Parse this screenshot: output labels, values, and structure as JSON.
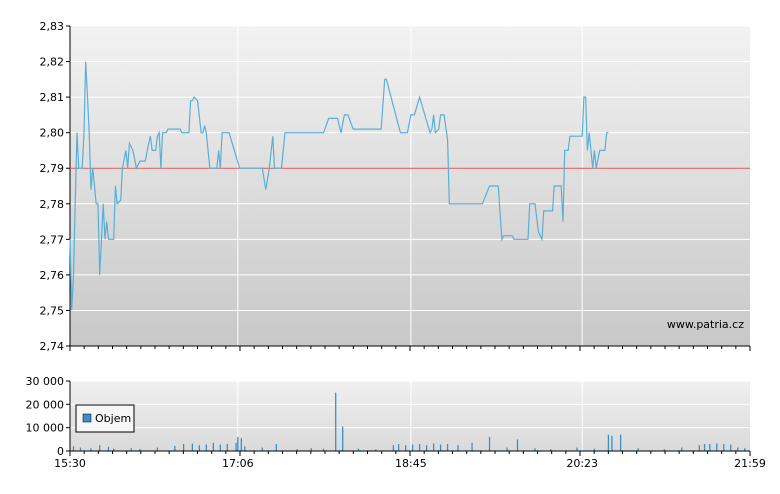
{
  "chart_data": [
    {
      "type": "line",
      "title": "",
      "xlabel": "",
      "ylabel": "",
      "ylim": [
        2.74,
        2.83
      ],
      "y_ticks": [
        "2,74",
        "2,75",
        "2,76",
        "2,77",
        "2,78",
        "2,79",
        "2,80",
        "2,81",
        "2,82",
        "2,83"
      ],
      "x_ticks": [
        "15:30",
        "17:06",
        "18:45",
        "20:23",
        "21:59"
      ],
      "reference_line": {
        "value": 2.79,
        "color": "#e05050"
      },
      "watermark": "www.patria.cz",
      "series": [
        {
          "color": "#5aafd6",
          "points": [
            [
              "15:30",
              2.77
            ],
            [
              "15:31",
              2.75
            ],
            [
              "15:32",
              2.76
            ],
            [
              "15:33",
              2.78
            ],
            [
              "15:34",
              2.8
            ],
            [
              "15:35",
              2.79
            ],
            [
              "15:37",
              2.79
            ],
            [
              "15:38",
              2.8
            ],
            [
              "15:39",
              2.82
            ],
            [
              "15:40",
              2.81
            ],
            [
              "15:41",
              2.8
            ],
            [
              "15:42",
              2.784
            ],
            [
              "15:43",
              2.79
            ],
            [
              "15:44",
              2.785
            ],
            [
              "15:45",
              2.78
            ],
            [
              "15:46",
              2.78
            ],
            [
              "15:47",
              2.76
            ],
            [
              "15:48",
              2.77
            ],
            [
              "15:49",
              2.78
            ],
            [
              "15:50",
              2.77
            ],
            [
              "15:51",
              2.775
            ],
            [
              "15:52",
              2.77
            ],
            [
              "15:55",
              2.77
            ],
            [
              "15:56",
              2.785
            ],
            [
              "15:57",
              2.78
            ],
            [
              "15:59",
              2.781
            ],
            [
              "16:00",
              2.79
            ],
            [
              "16:02",
              2.795
            ],
            [
              "16:03",
              2.79
            ],
            [
              "16:04",
              2.797
            ],
            [
              "16:06",
              2.795
            ],
            [
              "16:08",
              2.79
            ],
            [
              "16:10",
              2.792
            ],
            [
              "16:13",
              2.792
            ],
            [
              "16:15",
              2.797
            ],
            [
              "16:16",
              2.799
            ],
            [
              "16:17",
              2.795
            ],
            [
              "16:19",
              2.795
            ],
            [
              "16:20",
              2.799
            ],
            [
              "16:21",
              2.8
            ],
            [
              "16:22",
              2.79
            ],
            [
              "16:23",
              2.8
            ],
            [
              "16:25",
              2.8
            ],
            [
              "16:26",
              2.801
            ],
            [
              "16:30",
              2.801
            ],
            [
              "16:33",
              2.801
            ],
            [
              "16:34",
              2.8
            ],
            [
              "16:38",
              2.8
            ],
            [
              "16:39",
              2.809
            ],
            [
              "16:40",
              2.809
            ],
            [
              "16:41",
              2.81
            ],
            [
              "16:43",
              2.809
            ],
            [
              "16:45",
              2.8
            ],
            [
              "16:46",
              2.8
            ],
            [
              "16:47",
              2.802
            ],
            [
              "16:48",
              2.8
            ],
            [
              "16:50",
              2.79
            ],
            [
              "16:54",
              2.79
            ],
            [
              "16:55",
              2.795
            ],
            [
              "16:56",
              2.79
            ],
            [
              "16:57",
              2.8
            ],
            [
              "17:01",
              2.8
            ],
            [
              "17:07",
              2.79
            ],
            [
              "17:15",
              2.79
            ],
            [
              "17:20",
              2.79
            ],
            [
              "17:22",
              2.784
            ],
            [
              "17:24",
              2.79
            ],
            [
              "17:26",
              2.799
            ],
            [
              "17:27",
              2.79
            ],
            [
              "17:31",
              2.79
            ],
            [
              "17:33",
              2.8
            ],
            [
              "17:40",
              2.8
            ],
            [
              "17:50",
              2.8
            ],
            [
              "17:55",
              2.8
            ],
            [
              "17:58",
              2.804
            ],
            [
              "18:03",
              2.804
            ],
            [
              "18:05",
              2.8
            ],
            [
              "18:07",
              2.805
            ],
            [
              "18:09",
              2.805
            ],
            [
              "18:12",
              2.801
            ],
            [
              "18:20",
              2.801
            ],
            [
              "18:28",
              2.801
            ],
            [
              "18:30",
              2.815
            ],
            [
              "18:31",
              2.815
            ],
            [
              "18:39",
              2.8
            ],
            [
              "18:43",
              2.8
            ],
            [
              "18:45",
              2.805
            ],
            [
              "18:47",
              2.805
            ],
            [
              "18:50",
              2.81
            ],
            [
              "18:56",
              2.8
            ],
            [
              "18:57",
              2.801
            ],
            [
              "18:58",
              2.805
            ],
            [
              "18:59",
              2.8
            ],
            [
              "19:01",
              2.801
            ],
            [
              "19:02",
              2.805
            ],
            [
              "19:04",
              2.805
            ],
            [
              "19:06",
              2.798
            ],
            [
              "19:07",
              2.78
            ],
            [
              "19:10",
              2.78
            ],
            [
              "19:20",
              2.78
            ],
            [
              "19:24",
              2.78
            ],
            [
              "19:26",
              2.78
            ],
            [
              "19:30",
              2.785
            ],
            [
              "19:35",
              2.785
            ],
            [
              "19:37",
              2.77
            ],
            [
              "19:38",
              2.771
            ],
            [
              "19:43",
              2.771
            ],
            [
              "19:44",
              2.77
            ],
            [
              "19:52",
              2.77
            ],
            [
              "19:53",
              2.78
            ],
            [
              "19:56",
              2.78
            ],
            [
              "19:58",
              2.772
            ],
            [
              "20:00",
              2.77
            ],
            [
              "20:01",
              2.778
            ],
            [
              "20:06",
              2.778
            ],
            [
              "20:07",
              2.785
            ],
            [
              "20:11",
              2.785
            ],
            [
              "20:12",
              2.775
            ],
            [
              "20:13",
              2.795
            ],
            [
              "20:15",
              2.795
            ],
            [
              "20:16",
              2.799
            ],
            [
              "20:23",
              2.799
            ],
            [
              "20:24",
              2.81
            ],
            [
              "20:25",
              2.81
            ],
            [
              "20:26",
              2.795
            ],
            [
              "20:27",
              2.8
            ],
            [
              "20:29",
              2.79
            ],
            [
              "20:30",
              2.795
            ],
            [
              "20:31",
              2.79
            ],
            [
              "20:33",
              2.795
            ],
            [
              "20:36",
              2.795
            ],
            [
              "20:37",
              2.8
            ],
            [
              "20:38",
              2.8
            ]
          ],
          "x_axis_end": "21:59"
        }
      ]
    },
    {
      "type": "bar",
      "title": "",
      "ylim": [
        0,
        30000
      ],
      "y_ticks": [
        "0",
        "10 000",
        "20 000",
        "30 000"
      ],
      "x_ticks": [
        "15:30",
        "17:06",
        "18:45",
        "20:23",
        "21:59"
      ],
      "legend": {
        "label": "Objem",
        "color": "#3a8fc8",
        "placement": "left"
      },
      "series": [
        {
          "name": "Objem",
          "color": "#3a8fc8",
          "points": [
            [
              "15:32",
              2000
            ],
            [
              "15:36",
              1500
            ],
            [
              "15:42",
              1200
            ],
            [
              "15:47",
              2500
            ],
            [
              "15:52",
              1800
            ],
            [
              "15:55",
              1000
            ],
            [
              "16:05",
              1200
            ],
            [
              "16:10",
              900
            ],
            [
              "16:20",
              1500
            ],
            [
              "16:30",
              2200
            ],
            [
              "16:35",
              3000
            ],
            [
              "16:40",
              3200
            ],
            [
              "16:44",
              2500
            ],
            [
              "16:48",
              2800
            ],
            [
              "16:52",
              3500
            ],
            [
              "16:56",
              2800
            ],
            [
              "17:00",
              3000
            ],
            [
              "17:05",
              3500
            ],
            [
              "17:06",
              6000
            ],
            [
              "17:08",
              5500
            ],
            [
              "17:10",
              2000
            ],
            [
              "17:20",
              1500
            ],
            [
              "17:28",
              3000
            ],
            [
              "17:40",
              800
            ],
            [
              "17:48",
              1200
            ],
            [
              "17:55",
              1000
            ],
            [
              "18:02",
              25000
            ],
            [
              "18:06",
              10500
            ],
            [
              "18:15",
              1000
            ],
            [
              "18:25",
              800
            ],
            [
              "18:35",
              2500
            ],
            [
              "18:38",
              3000
            ],
            [
              "18:42",
              2500
            ],
            [
              "18:46",
              2800
            ],
            [
              "18:50",
              3000
            ],
            [
              "18:54",
              2500
            ],
            [
              "18:58",
              3200
            ],
            [
              "19:02",
              2800
            ],
            [
              "19:06",
              3000
            ],
            [
              "19:12",
              2500
            ],
            [
              "19:20",
              3500
            ],
            [
              "19:30",
              6000
            ],
            [
              "19:40",
              1500
            ],
            [
              "19:46",
              5000
            ],
            [
              "19:56",
              1200
            ],
            [
              "20:05",
              800
            ],
            [
              "20:20",
              1500
            ],
            [
              "20:30",
              1000
            ],
            [
              "20:38",
              7000
            ],
            [
              "20:40",
              6500
            ],
            [
              "20:45",
              7000
            ],
            [
              "20:55",
              1200
            ],
            [
              "21:10",
              800
            ],
            [
              "21:20",
              1500
            ],
            [
              "21:30",
              2500
            ],
            [
              "21:33",
              3000
            ],
            [
              "21:36",
              3000
            ],
            [
              "21:40",
              3200
            ],
            [
              "21:44",
              3000
            ],
            [
              "21:48",
              2800
            ],
            [
              "21:52",
              1500
            ],
            [
              "21:56",
              1200
            ]
          ]
        }
      ]
    }
  ]
}
